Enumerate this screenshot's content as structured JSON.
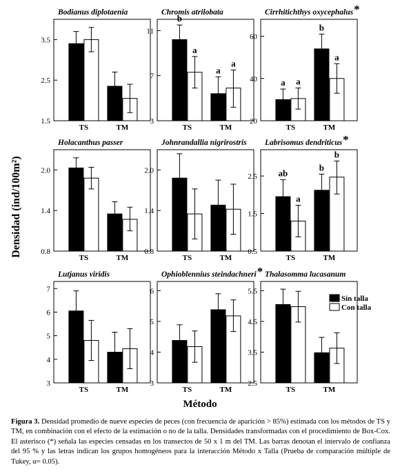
{
  "figure": {
    "ylabel": "Densidad (ind/100m²)",
    "xlabel": "Método",
    "legend": {
      "sin": "Sin talla",
      "con": "Con talla"
    },
    "colors": {
      "sin": "#000000",
      "con": "#ffffff"
    }
  },
  "caption": {
    "label": "Figura 3.",
    "text": "Densidad promedio de nueve especies de peces (con frecuencia de aparición > 85%) estimada con los métodos de TS y TM, en combinación con el efecto de la estimación o no de la talla. Densidades transformadas con el procedimiento de Box-Cox. El asterisco (*) señala las especies censadas en los transectos de 50 x 1 m del TM. Las barras denotan el intervalo de confianza del 95 % y las letras indican los grupos homogéneos para la interacción Método x Talla (Prueba de comparación múltiple de Tukey, α= 0.05)."
  },
  "chart_data": [
    {
      "type": "bar",
      "title": "Bodianus diplotaenia",
      "asterisk": false,
      "categories": [
        "TS",
        "TM"
      ],
      "ylim": [
        1.5,
        4.0
      ],
      "yticks": [
        "1.5",
        "2.5",
        "3.5"
      ],
      "series": [
        {
          "name": "Sin talla",
          "values": [
            3.4,
            2.35
          ],
          "ci_low": [
            3.1,
            2.0
          ],
          "ci_high": [
            3.7,
            2.7
          ]
        },
        {
          "name": "Con talla",
          "values": [
            3.5,
            2.05
          ],
          "ci_low": [
            3.2,
            1.7
          ],
          "ci_high": [
            3.8,
            2.4
          ]
        }
      ],
      "letters": []
    },
    {
      "type": "bar",
      "title": "Chromis atrilobata",
      "asterisk": false,
      "categories": [
        "TS",
        "TM"
      ],
      "ylim": [
        3,
        12
      ],
      "yticks": [
        "3",
        "7",
        "11"
      ],
      "series": [
        {
          "name": "Sin talla",
          "values": [
            10.2,
            5.4
          ],
          "ci_low": [
            8.8,
            3.9
          ],
          "ci_high": [
            11.5,
            6.9
          ]
        },
        {
          "name": "Con talla",
          "values": [
            7.3,
            5.9
          ],
          "ci_low": [
            5.9,
            4.2
          ],
          "ci_high": [
            8.7,
            7.5
          ]
        }
      ],
      "letters": [
        [
          "b",
          "a"
        ],
        [
          "a",
          "a"
        ]
      ]
    },
    {
      "type": "bar",
      "title": "Cirrhitichthys oxycephalus",
      "asterisk": true,
      "categories": [
        "TS",
        "TM"
      ],
      "ylim": [
        20,
        68
      ],
      "yticks": [
        "20",
        "40",
        "60"
      ],
      "series": [
        {
          "name": "Sin talla",
          "values": [
            30,
            54
          ],
          "ci_low": [
            25,
            47
          ],
          "ci_high": [
            35,
            61
          ]
        },
        {
          "name": "Con talla",
          "values": [
            30.5,
            40
          ],
          "ci_low": [
            25.5,
            33
          ],
          "ci_high": [
            35.5,
            47
          ]
        }
      ],
      "letters": [
        [
          "a",
          "b"
        ],
        [
          "a",
          "a"
        ]
      ]
    },
    {
      "type": "bar",
      "title": "Holacanthus passer",
      "asterisk": false,
      "categories": [
        "TS",
        "TM"
      ],
      "ylim": [
        0.8,
        2.3
      ],
      "yticks": [
        "0.8",
        "1.4",
        "2.0"
      ],
      "series": [
        {
          "name": "Sin talla",
          "values": [
            2.03,
            1.35
          ],
          "ci_low": [
            1.88,
            1.17
          ],
          "ci_high": [
            2.18,
            1.53
          ]
        },
        {
          "name": "Con talla",
          "values": [
            1.88,
            1.27
          ],
          "ci_low": [
            1.72,
            1.1
          ],
          "ci_high": [
            2.04,
            1.45
          ]
        }
      ],
      "letters": []
    },
    {
      "type": "bar",
      "title": "Johnrandallia nigrirostris",
      "asterisk": false,
      "categories": [
        "TS",
        "TM"
      ],
      "ylim": [
        0.8,
        2.3
      ],
      "yticks": [
        "0.8",
        "1.4",
        "2.0"
      ],
      "series": [
        {
          "name": "Sin talla",
          "values": [
            1.88,
            1.48
          ],
          "ci_low": [
            1.54,
            1.11
          ],
          "ci_high": [
            2.24,
            1.85
          ]
        },
        {
          "name": "Con talla",
          "values": [
            1.35,
            1.42
          ],
          "ci_low": [
            0.98,
            1.05
          ],
          "ci_high": [
            1.72,
            1.79
          ]
        }
      ],
      "letters": []
    },
    {
      "type": "bar",
      "title": "Labrisomus dendriticus",
      "asterisk": true,
      "categories": [
        "TS",
        "TM"
      ],
      "ylim": [
        0.5,
        3.2
      ],
      "yticks": [
        "0.5",
        "1.5",
        "2.5"
      ],
      "series": [
        {
          "name": "Sin talla",
          "values": [
            1.95,
            2.12
          ],
          "ci_low": [
            1.5,
            1.7
          ],
          "ci_high": [
            2.4,
            2.55
          ]
        },
        {
          "name": "Con talla",
          "values": [
            1.3,
            2.47
          ],
          "ci_low": [
            0.88,
            2.02
          ],
          "ci_high": [
            1.72,
            2.9
          ]
        }
      ],
      "letters": [
        [
          "ab",
          "b"
        ],
        [
          "a",
          "b"
        ]
      ]
    },
    {
      "type": "bar",
      "title": "Lutjanus viridis",
      "asterisk": false,
      "categories": [
        "TS",
        "TM"
      ],
      "ylim": [
        3,
        7.3
      ],
      "yticks": [
        "3",
        "4",
        "5",
        "6",
        "7"
      ],
      "series": [
        {
          "name": "Sin talla",
          "values": [
            6.05,
            4.3
          ],
          "ci_low": [
            5.2,
            3.45
          ],
          "ci_high": [
            6.9,
            5.15
          ]
        },
        {
          "name": "Con talla",
          "values": [
            4.8,
            4.45
          ],
          "ci_low": [
            3.95,
            3.6
          ],
          "ci_high": [
            5.65,
            5.3
          ]
        }
      ],
      "letters": []
    },
    {
      "type": "bar",
      "title": "Ophioblennius steindachneri",
      "asterisk": true,
      "categories": [
        "TS",
        "TM"
      ],
      "ylim": [
        3,
        6.3
      ],
      "yticks": [
        "3",
        "4",
        "5",
        "6"
      ],
      "series": [
        {
          "name": "Sin talla",
          "values": [
            4.38,
            5.38
          ],
          "ci_low": [
            3.87,
            4.87
          ],
          "ci_high": [
            4.89,
            5.9
          ]
        },
        {
          "name": "Con talla",
          "values": [
            4.18,
            5.18
          ],
          "ci_low": [
            3.67,
            4.67
          ],
          "ci_high": [
            4.69,
            5.7
          ]
        }
      ],
      "letters": []
    },
    {
      "type": "bar",
      "title": "Thalasomma lucasanum",
      "asterisk": false,
      "categories": [
        "TS",
        "TM"
      ],
      "ylim": [
        2.5,
        5.8
      ],
      "yticks": [
        "2.5",
        "3.5",
        "4.5",
        "5.5"
      ],
      "series": [
        {
          "name": "Sin talla",
          "values": [
            5.05,
            3.48
          ],
          "ci_low": [
            4.55,
            2.98
          ],
          "ci_high": [
            5.55,
            3.98
          ]
        },
        {
          "name": "Con talla",
          "values": [
            4.98,
            3.63
          ],
          "ci_low": [
            4.48,
            3.13
          ],
          "ci_high": [
            5.48,
            4.13
          ]
        }
      ],
      "letters": []
    }
  ]
}
